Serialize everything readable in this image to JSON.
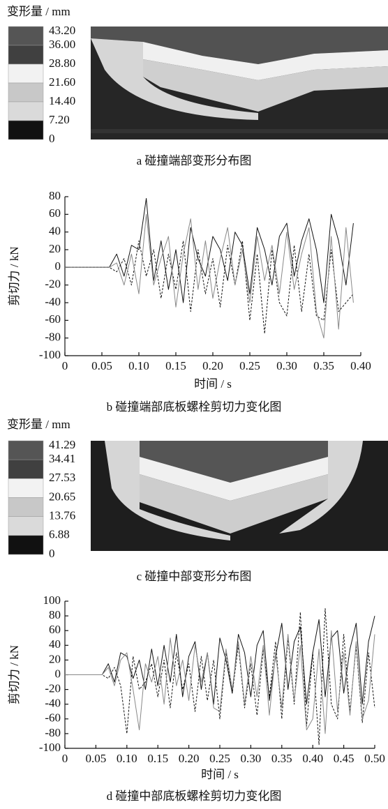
{
  "chart_data": [
    {
      "type": "contour",
      "title": "变形量 / mm",
      "caption": "a 碰撞端部变形分布图",
      "levels": [
        {
          "value": 43.2,
          "label": "43.20"
        },
        {
          "value": 36,
          "label": "36.00"
        },
        {
          "value": 28.8,
          "label": "28.80"
        },
        {
          "value": 21.6,
          "label": "21.60"
        },
        {
          "value": 14.4,
          "label": "14.40"
        },
        {
          "value": 7.2,
          "label": "7.20"
        },
        0
      ],
      "colors": [
        "#555555",
        "#404040",
        "#f2f2f2",
        "#c8c8c8",
        "#dadada",
        "#111111"
      ]
    },
    {
      "type": "line",
      "ylabel": "剪切力 / kN",
      "xlabel": "时间 / s",
      "caption": "b 碰撞端部底板螺栓剪切力变化图",
      "xlim": [
        0,
        0.4
      ],
      "xticks": [
        0,
        0.05,
        {
          "value": 0.1,
          "label": "0.10"
        },
        0.15,
        {
          "value": 0.2,
          "label": "0.20"
        },
        0.25,
        {
          "value": 0.3,
          "label": "0.30"
        },
        0.35,
        {
          "value": 0.4,
          "label": "0.40"
        }
      ],
      "ylim": [
        -100,
        80
      ],
      "yticks": [
        -100,
        -80,
        -60,
        -40,
        -20,
        0,
        20,
        40,
        60,
        80
      ],
      "x": [
        0,
        0.06,
        0.07,
        0.08,
        0.09,
        0.1,
        0.11,
        0.12,
        0.13,
        0.14,
        0.15,
        0.16,
        0.17,
        0.18,
        0.19,
        0.2,
        0.21,
        0.22,
        0.23,
        0.24,
        0.25,
        0.26,
        0.27,
        0.28,
        0.29,
        0.3,
        0.31,
        0.32,
        0.33,
        0.34,
        0.35,
        0.36,
        0.37,
        0.38,
        0.39
      ],
      "series": [
        {
          "color": "#111111",
          "dashed": false,
          "values": [
            0,
            0,
            15,
            -10,
            25,
            20,
            78,
            -15,
            30,
            -25,
            20,
            -40,
            45,
            10,
            -10,
            35,
            20,
            -15,
            40,
            25,
            -30,
            45,
            20,
            -20,
            35,
            50,
            -10,
            30,
            55,
            20,
            -40,
            60,
            30,
            -20,
            50
          ]
        },
        {
          "color": "#111111",
          "dashed": true,
          "values": [
            0,
            0,
            -5,
            10,
            -20,
            30,
            -10,
            20,
            -35,
            15,
            -25,
            30,
            -50,
            20,
            -30,
            10,
            -45,
            25,
            -20,
            30,
            -60,
            15,
            -75,
            20,
            -40,
            -55,
            25,
            -50,
            15,
            -55,
            -60,
            20,
            -50,
            -40,
            -30
          ]
        },
        {
          "color": "#888888",
          "dashed": false,
          "values": [
            0,
            0,
            5,
            -20,
            15,
            -30,
            60,
            -20,
            10,
            35,
            -45,
            15,
            55,
            -25,
            30,
            -35,
            10,
            45,
            -20,
            20,
            -40,
            35,
            -15,
            25,
            -30,
            40,
            -25,
            15,
            45,
            -50,
            -80,
            35,
            -70,
            45,
            -40
          ]
        }
      ]
    },
    {
      "type": "contour",
      "title": "变形量 / mm",
      "caption": "c 碰撞中部变形分布图",
      "levels": [
        {
          "value": 41.29,
          "label": "41.29"
        },
        34.41,
        27.53,
        20.65,
        13.76,
        6.88,
        0
      ],
      "colors": [
        "#555555",
        "#404040",
        "#f2f2f2",
        "#c8c8c8",
        "#dadada",
        "#111111"
      ]
    },
    {
      "type": "line",
      "ylabel": "剪切力 / kN",
      "xlabel": "时间 / s",
      "caption": "d 碰撞中部底板螺栓剪切力变化图",
      "xlim": [
        0,
        0.5
      ],
      "xticks": [
        0,
        0.05,
        {
          "value": 0.1,
          "label": "0.10"
        },
        0.15,
        {
          "value": 0.2,
          "label": "0.20"
        },
        0.25,
        {
          "value": 0.3,
          "label": "0.30"
        },
        0.35,
        {
          "value": 0.4,
          "label": "0.40"
        },
        0.45,
        {
          "value": 0.5,
          "label": "0.50"
        }
      ],
      "ylim": [
        -100,
        100
      ],
      "yticks": [
        -100,
        -80,
        -60,
        -40,
        -20,
        0,
        20,
        40,
        60,
        80,
        100
      ],
      "x": [
        0,
        0.06,
        0.07,
        0.08,
        0.09,
        0.1,
        0.11,
        0.12,
        0.13,
        0.14,
        0.15,
        0.16,
        0.17,
        0.18,
        0.19,
        0.2,
        0.21,
        0.22,
        0.23,
        0.24,
        0.25,
        0.26,
        0.27,
        0.28,
        0.29,
        0.3,
        0.31,
        0.32,
        0.33,
        0.34,
        0.35,
        0.36,
        0.37,
        0.38,
        0.39,
        0.4,
        0.41,
        0.42,
        0.43,
        0.44,
        0.45,
        0.46,
        0.47,
        0.48,
        0.49,
        0.5
      ],
      "series": [
        {
          "color": "#111111",
          "dashed": false,
          "values": [
            0,
            0,
            15,
            -10,
            30,
            25,
            -5,
            20,
            -20,
            35,
            -15,
            40,
            -10,
            55,
            -30,
            25,
            45,
            -20,
            30,
            -40,
            50,
            20,
            -25,
            55,
            30,
            -30,
            40,
            60,
            -35,
            25,
            70,
            -20,
            45,
            65,
            -40,
            30,
            75,
            -30,
            50,
            60,
            -25,
            35,
            70,
            -40,
            45,
            80
          ]
        },
        {
          "color": "#111111",
          "dashed": true,
          "values": [
            0,
            0,
            -5,
            10,
            -15,
            -80,
            25,
            -20,
            -10,
            15,
            -30,
            20,
            -45,
            30,
            -20,
            15,
            -50,
            25,
            -35,
            20,
            -60,
            30,
            -25,
            40,
            -45,
            15,
            -55,
            35,
            -30,
            45,
            -60,
            50,
            -40,
            85,
            -70,
            30,
            -95,
            90,
            -40,
            -60,
            55,
            -50,
            40,
            -65,
            30,
            -45
          ]
        },
        {
          "color": "#888888",
          "dashed": false,
          "values": [
            0,
            0,
            10,
            -15,
            20,
            30,
            -20,
            -75,
            15,
            -10,
            25,
            -40,
            50,
            -15,
            20,
            -35,
            40,
            -10,
            30,
            -45,
            -50,
            35,
            -20,
            45,
            -40,
            25,
            -30,
            40,
            -55,
            30,
            -45,
            55,
            -35,
            40,
            -75,
            -60,
            35,
            -80,
            60,
            -50,
            30,
            -55,
            45,
            -60,
            -35,
            55
          ]
        }
      ]
    }
  ]
}
